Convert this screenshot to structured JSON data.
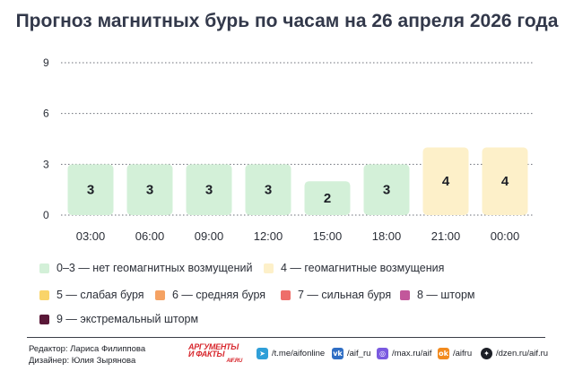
{
  "title": "Прогноз магнитных бурь по часам на 26 апреля 2026 года",
  "chart_data": {
    "type": "bar",
    "categories": [
      "03:00",
      "06:00",
      "09:00",
      "12:00",
      "15:00",
      "18:00",
      "21:00",
      "00:00"
    ],
    "values": [
      3,
      3,
      3,
      3,
      2,
      3,
      4,
      4
    ],
    "ylim": [
      0,
      9
    ],
    "yticks": [
      0,
      3,
      6,
      9
    ],
    "grid": true,
    "grid_style": "dotted",
    "xlabel": "",
    "ylabel": "",
    "data_labels": true
  },
  "legend": [
    {
      "label": "0–3 — нет геомагнитных возмущений",
      "color": "#d3f0d8"
    },
    {
      "label": "4 — геомагнитные возмущения",
      "color": "#fdf0c9"
    },
    {
      "label": "5 — слабая буря",
      "color": "#f9d46a"
    },
    {
      "label": "6 — средняя буря",
      "color": "#f5a263"
    },
    {
      "label": "7 — сильная буря",
      "color": "#ee6e6a"
    },
    {
      "label": "8 — шторм",
      "color": "#c2579b"
    },
    {
      "label": "9 — экстремальный шторм",
      "color": "#5a1838"
    }
  ],
  "footer": {
    "editor": "Редактор: Лариса Филиппова",
    "designer": "Дизайнер: Юлия Зырянова",
    "logo_line1": "АРГУМЕНТЫ",
    "logo_line2": "И ФАКТЫ",
    "logo_site": "AIF.RU",
    "socials": [
      {
        "icon": "telegram-icon",
        "text": "/t.me/aifonline",
        "color": "#2f9fd8"
      },
      {
        "icon": "vk-icon",
        "text": "/aif_ru",
        "color": "#2f6ec4"
      },
      {
        "icon": "max-icon",
        "text": "/max.ru/aif",
        "color": "#7a5ae0"
      },
      {
        "icon": "ok-icon",
        "text": "/aifru",
        "color": "#f28a1d"
      },
      {
        "icon": "dzen-icon",
        "text": "/dzen.ru/aif.ru",
        "color": "#1c1f26"
      }
    ]
  }
}
